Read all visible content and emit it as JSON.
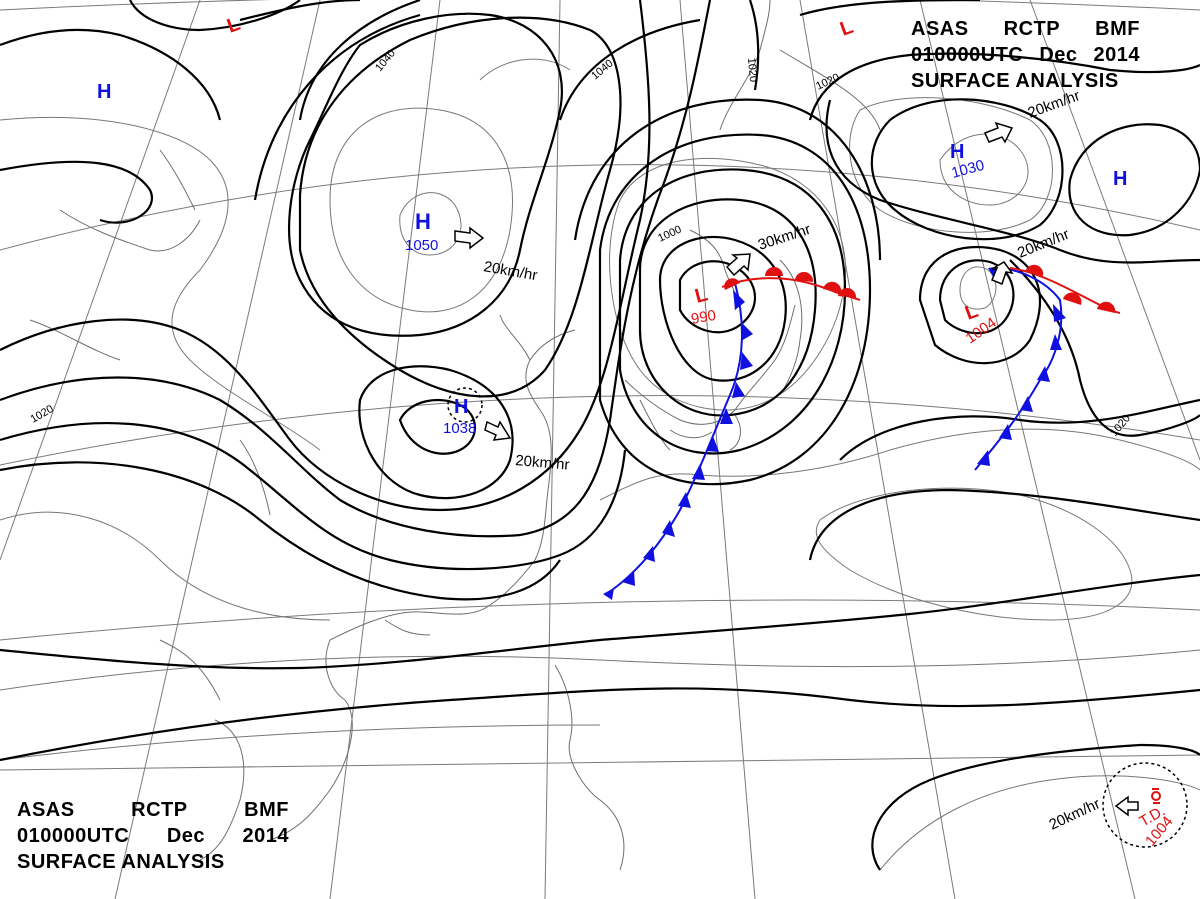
{
  "header_top": {
    "line1": [
      "ASAS",
      "RCTP",
      "BMF"
    ],
    "line2": [
      "010000UTC",
      "Dec",
      "2014"
    ],
    "line3": "SURFACE ANALYSIS"
  },
  "header_bottom": {
    "line1": [
      "ASAS",
      "RCTP",
      "BMF"
    ],
    "line2": [
      "010000UTC",
      "Dec",
      "2014"
    ],
    "line3": "SURFACE ANALYSIS"
  },
  "colors": {
    "high": "#1010e0",
    "low": "#e01010",
    "cold_front": "#1010e0",
    "warm_front": "#e01010",
    "isobar": "#000000",
    "grid": "#808080"
  },
  "systems": {
    "high_mongolia": {
      "symbol": "H",
      "pressure": "1050",
      "motion": "20km/hr"
    },
    "high_china": {
      "symbol": "H",
      "pressure": "1038",
      "motion": "20km/hr"
    },
    "high_nw": {
      "symbol": "H"
    },
    "high_pacific": {
      "symbol": "H",
      "pressure": "1030",
      "motion": "20km/hr"
    },
    "high_east": {
      "symbol": "H"
    },
    "low_north1": {
      "symbol": "L"
    },
    "low_north2": {
      "symbol": "L"
    },
    "low_japan": {
      "symbol": "L",
      "pressure": "990",
      "motion": "30km/hr"
    },
    "low_pacific": {
      "symbol": "L",
      "pressure": "1004",
      "motion": "20km/hr"
    },
    "td": {
      "symbol": "T.D.",
      "pressure": "1004",
      "motion": "20km/hr"
    }
  },
  "isobar_labels": {
    "l1040a": "1040",
    "l1040b": "1040",
    "l1020a": "1020",
    "l1020b": "1020",
    "l1020c": "1020",
    "l1020d": "1020",
    "l1000": "1000"
  }
}
